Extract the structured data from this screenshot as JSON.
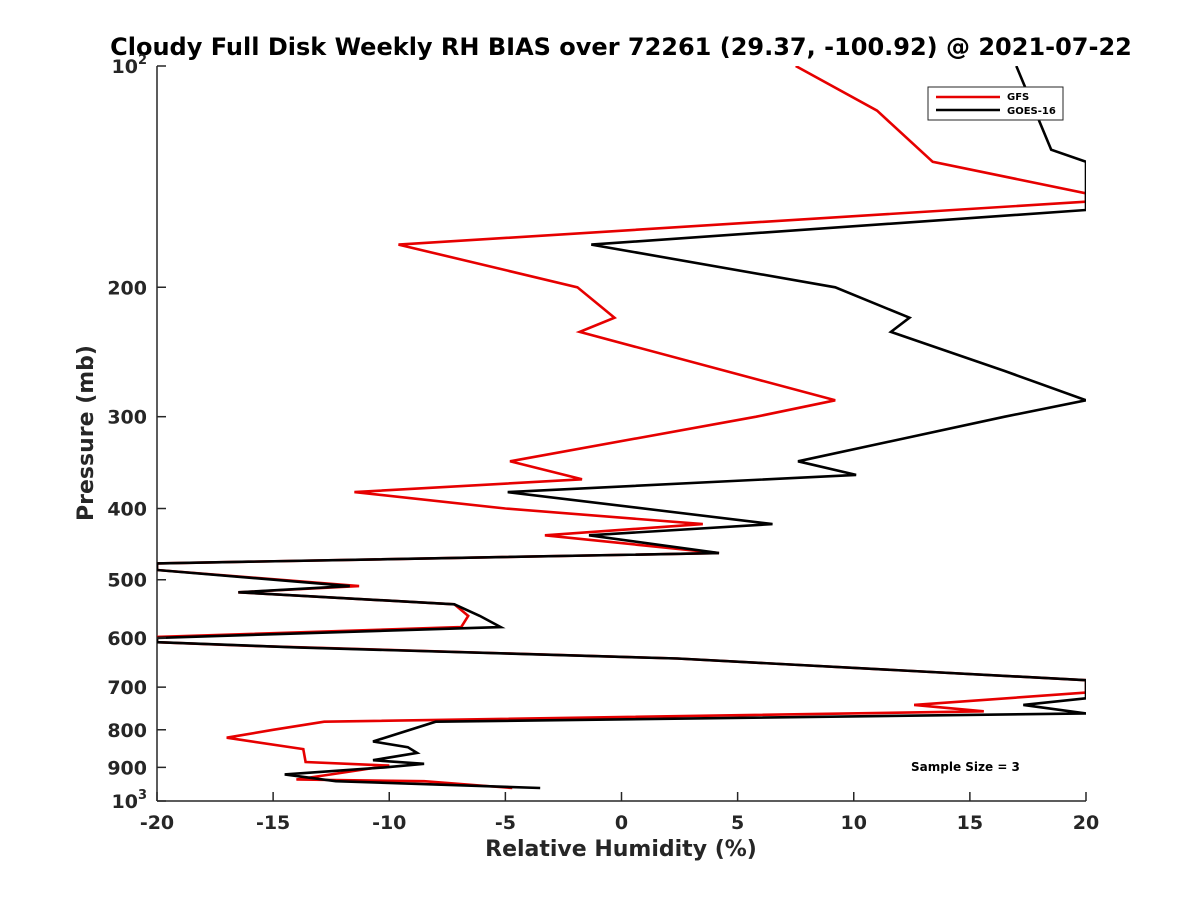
{
  "chart_data": {
    "type": "line",
    "title": "Cloudy Full Disk Weekly RH BIAS over 72261 (29.37, -100.92) @ 2021-07-22",
    "xlabel": "Relative Humidity (%)",
    "ylabel": "Pressure (mb)",
    "xlim": [
      -20,
      20
    ],
    "ylim": [
      100,
      1000
    ],
    "y_scale": "log",
    "y_reversed": true,
    "grid": false,
    "legend": "top-right",
    "x_ticks": [
      "-20",
      "-15",
      "-10",
      "-5",
      "0",
      "5",
      "10",
      "15",
      "20"
    ],
    "y_ticks": [
      {
        "value": 100,
        "base": "10",
        "exp": "2"
      },
      {
        "value": 200,
        "label": "200"
      },
      {
        "value": 300,
        "label": "300"
      },
      {
        "value": 400,
        "label": "400"
      },
      {
        "value": 500,
        "label": "500"
      },
      {
        "value": 600,
        "label": "600"
      },
      {
        "value": 700,
        "label": "700"
      },
      {
        "value": 800,
        "label": "800"
      },
      {
        "value": 900,
        "label": "900"
      },
      {
        "value": 1000,
        "base": "10",
        "exp": "3"
      }
    ],
    "annotation": "Sample Size = 3",
    "series": [
      {
        "name": "GFS",
        "color": "#e60000",
        "points": [
          [
            7.5,
            100
          ],
          [
            11,
            115
          ],
          [
            13.4,
            135
          ],
          [
            20,
            149
          ],
          [
            20,
            153
          ],
          [
            -9.6,
            175
          ],
          [
            -1.9,
            200
          ],
          [
            -0.3,
            220
          ],
          [
            -1.8,
            230
          ],
          [
            9.2,
            285
          ],
          [
            5.8,
            300
          ],
          [
            -4.8,
            345
          ],
          [
            -1.7,
            365
          ],
          [
            -11.5,
            380
          ],
          [
            -5,
            400
          ],
          [
            3.5,
            420
          ],
          [
            -3.3,
            435
          ],
          [
            4.2,
            460
          ],
          [
            -20,
            475
          ],
          [
            -20,
            485
          ],
          [
            -11.3,
            510
          ],
          [
            -16.5,
            520
          ],
          [
            -7.2,
            540
          ],
          [
            -6.6,
            560
          ],
          [
            -6.9,
            580
          ],
          [
            -20,
            598
          ],
          [
            -20,
            608
          ],
          [
            -16,
            615
          ],
          [
            2.4,
            640
          ],
          [
            20,
            685
          ],
          [
            20,
            712
          ],
          [
            12.6,
            740
          ],
          [
            15.6,
            755
          ],
          [
            -12.8,
            780
          ],
          [
            -15,
            800
          ],
          [
            -17,
            820
          ],
          [
            -13.7,
            850
          ],
          [
            -13.6,
            885
          ],
          [
            -10,
            895
          ],
          [
            -12.5,
            920
          ],
          [
            -14,
            935
          ],
          [
            -8.5,
            940
          ],
          [
            -4.7,
            960
          ]
        ]
      },
      {
        "name": "GOES-16",
        "color": "#000000",
        "points": [
          [
            17,
            100
          ],
          [
            18.5,
            130
          ],
          [
            20,
            135
          ],
          [
            20,
            157
          ],
          [
            -1.3,
            175
          ],
          [
            9.2,
            200
          ],
          [
            12.4,
            220
          ],
          [
            11.6,
            230
          ],
          [
            16.5,
            260
          ],
          [
            20,
            285
          ],
          [
            16.5,
            300
          ],
          [
            7.6,
            345
          ],
          [
            10.1,
            360
          ],
          [
            -4.9,
            380
          ],
          [
            6.5,
            420
          ],
          [
            -1.4,
            435
          ],
          [
            4.2,
            460
          ],
          [
            -20,
            475
          ],
          [
            -20,
            485
          ],
          [
            -11.7,
            510
          ],
          [
            -16.5,
            520
          ],
          [
            -7.2,
            540
          ],
          [
            -6.1,
            560
          ],
          [
            -5.2,
            580
          ],
          [
            -20,
            600
          ],
          [
            -20,
            608
          ],
          [
            -14,
            618
          ],
          [
            2.4,
            640
          ],
          [
            20,
            685
          ],
          [
            20,
            725
          ],
          [
            17.3,
            740
          ],
          [
            20,
            760
          ],
          [
            -8,
            780
          ],
          [
            -10.7,
            830
          ],
          [
            -9.2,
            845
          ],
          [
            -8.8,
            860
          ],
          [
            -10.7,
            880
          ],
          [
            -8.5,
            890
          ],
          [
            -10.2,
            900
          ],
          [
            -14.5,
            920
          ],
          [
            -12.3,
            940
          ],
          [
            -3.5,
            960
          ]
        ]
      }
    ]
  }
}
